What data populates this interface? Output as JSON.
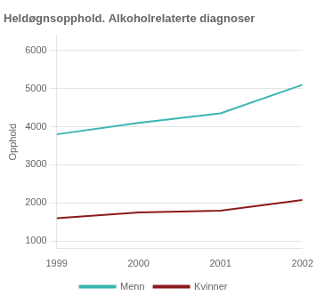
{
  "chart_data": {
    "type": "line",
    "title": "Heldøgnsopphold. Alkoholrelaterte diagnoser",
    "ylabel": "Opphold",
    "x": [
      1999,
      2000,
      2001,
      2002
    ],
    "series": [
      {
        "name": "Menn",
        "color": "#3ab5b0",
        "values": [
          3800,
          4100,
          4350,
          5100
        ]
      },
      {
        "name": "Kvinner",
        "color": "#8b1a1a",
        "values": [
          1600,
          1750,
          1800,
          2075
        ]
      }
    ],
    "xlim": [
      1999,
      2002
    ],
    "xticks": [
      1999,
      2000,
      2001,
      2002
    ],
    "ylim": [
      800,
      6400
    ],
    "yticks": [
      1000,
      2000,
      3000,
      4000,
      5000,
      6000
    ],
    "grid": true,
    "legend": "bottom"
  }
}
